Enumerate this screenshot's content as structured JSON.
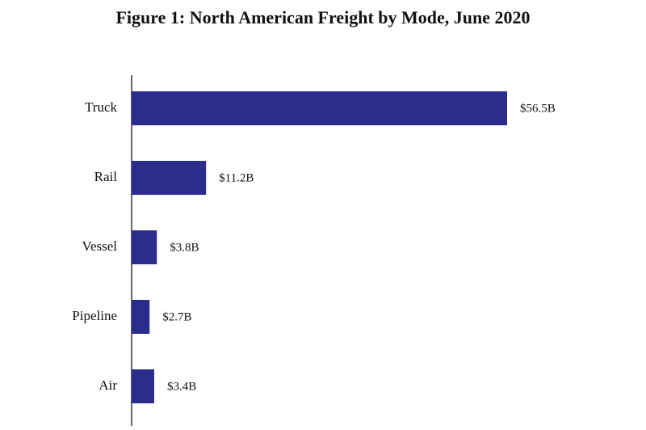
{
  "chart_data": {
    "type": "hbar",
    "title": "Figure 1: North American Freight by Mode, June 2020",
    "categories": [
      "Truck",
      "Rail",
      "Vessel",
      "Pipeline",
      "Air"
    ],
    "values": [
      56.5,
      11.2,
      3.8,
      2.7,
      3.4
    ],
    "value_labels": [
      "$56.5B",
      "$11.2B",
      "$3.8B",
      "$2.7B",
      "$3.4B"
    ],
    "color": "#2b2d8c"
  }
}
